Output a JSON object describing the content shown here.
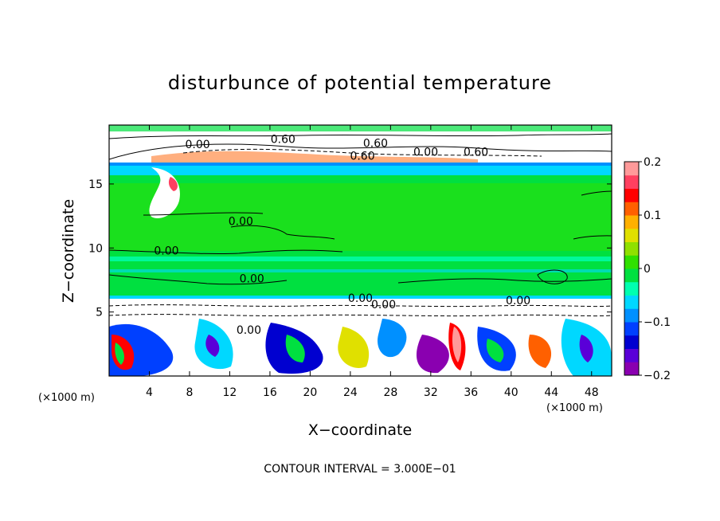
{
  "chart_data": {
    "type": "heatmap",
    "title": "disturbunce of potential temperature",
    "xlabel": "X−coordinate",
    "ylabel": "Z−coordinate",
    "x_unit_left": "(×1000 m)",
    "x_unit_right": "(×1000 m)",
    "xlim": [
      0,
      50
    ],
    "ylim": [
      0,
      19.6
    ],
    "x_ticks": [
      4,
      8,
      12,
      16,
      20,
      24,
      28,
      32,
      36,
      40,
      44,
      48
    ],
    "x_tick_labels": [
      "4",
      "8",
      "12",
      "16",
      "20",
      "24",
      "28",
      "32",
      "36",
      "40",
      "44",
      "48"
    ],
    "y_ticks": [
      5,
      10,
      15
    ],
    "y_tick_labels": [
      "5",
      "10",
      "15"
    ],
    "colorbar": {
      "range": [
        -0.2,
        0.2
      ],
      "ticks": [
        0.2,
        0.1,
        0,
        -0.1,
        -0.2
      ],
      "tick_labels": [
        "0.2",
        "0.1",
        "0",
        "−0.1",
        "−0.2"
      ],
      "colors": [
        "#8a00b0",
        "#5a00d8",
        "#0000d0",
        "#0040ff",
        "#0090ff",
        "#00d8ff",
        "#00ffb0",
        "#00e040",
        "#30e000",
        "#90e000",
        "#e0e000",
        "#ffb000",
        "#ff6000",
        "#ff0000",
        "#ff4060",
        "#ff9a9a"
      ]
    },
    "contour_interval_text": "CONTOUR INTERVAL =  3.000E−01",
    "contour_labels": [
      {
        "text": "0.00",
        "x": 8.8,
        "y": 17.8
      },
      {
        "text": "0.60",
        "x": 17.3,
        "y": 18.2
      },
      {
        "text": "0.60",
        "x": 26.5,
        "y": 17.9
      },
      {
        "text": "0.60",
        "x": 25.2,
        "y": 16.9
      },
      {
        "text": "0.00",
        "x": 31.5,
        "y": 17.2
      },
      {
        "text": "0.60",
        "x": 36.5,
        "y": 17.2
      },
      {
        "text": "0.00",
        "x": 13.1,
        "y": 11.8
      },
      {
        "text": "0.00",
        "x": 5.7,
        "y": 9.5
      },
      {
        "text": "0.00",
        "x": 14.2,
        "y": 7.3
      },
      {
        "text": "0.00",
        "x": 25.0,
        "y": 5.8
      },
      {
        "text": "0.00",
        "x": 27.3,
        "y": 5.3
      },
      {
        "text": "0.00",
        "x": 40.7,
        "y": 5.6
      },
      {
        "text": "0.00",
        "x": 13.9,
        "y": 3.3
      }
    ]
  }
}
